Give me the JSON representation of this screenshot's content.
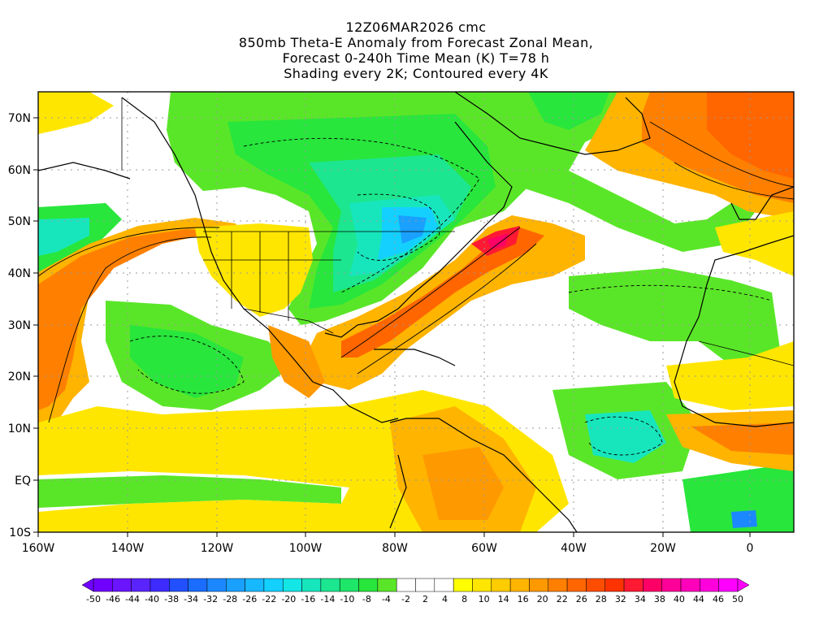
{
  "title": {
    "lines": [
      "12Z06MAR2026 cmc",
      "850mb Theta-E Anomaly from Forecast Zonal Mean,",
      "Forecast 0-240h Time Mean (K) T=78 h",
      "Shading every 2K; Contoured every 4K"
    ]
  },
  "axes": {
    "lat_labels": [
      "70N",
      "60N",
      "50N",
      "40N",
      "30N",
      "20N",
      "10N",
      "EQ",
      "10S"
    ],
    "lon_labels": [
      "160W",
      "140W",
      "120W",
      "100W",
      "80W",
      "60W",
      "40W",
      "20W",
      "0"
    ]
  },
  "colorbar": {
    "labels": [
      "-50",
      "-46",
      "-44",
      "-40",
      "-38",
      "-34",
      "-32",
      "-28",
      "-26",
      "-22",
      "-20",
      "-16",
      "-14",
      "-10",
      "-8",
      "-4",
      "-2",
      "2",
      "4",
      "8",
      "10",
      "14",
      "16",
      "20",
      "22",
      "26",
      "28",
      "32",
      "34",
      "38",
      "40",
      "44",
      "46",
      "50"
    ],
    "colors": [
      "#7000ff",
      "#6a14ff",
      "#5a24ff",
      "#3d2bff",
      "#2350ff",
      "#1a6dff",
      "#1c88ff",
      "#1aa0ff",
      "#18b8ff",
      "#14d0ff",
      "#14e6e6",
      "#17e6bd",
      "#1ce68f",
      "#1ee668",
      "#28e63c",
      "#5ae628",
      "#ffffff",
      "#ffffff",
      "#ffffff",
      "#ffff00",
      "#ffe600",
      "#ffcc00",
      "#ffb400",
      "#ff9900",
      "#ff8000",
      "#ff6600",
      "#ff4d00",
      "#ff3300",
      "#ff1a33",
      "#ff0066",
      "#ff0099",
      "#ff00bb",
      "#ff00dd",
      "#ff00ff"
    ]
  },
  "legend_colors": {
    "negative_strong": "#1c88ff",
    "negative_mid": "#17e6bd",
    "negative_weak": "#5ae628",
    "neutral": "#ffffff",
    "positive_weak": "#ffe600",
    "positive_mid": "#ffb400",
    "positive_strong": "#ff6600",
    "positive_max": "#ff1a33"
  }
}
